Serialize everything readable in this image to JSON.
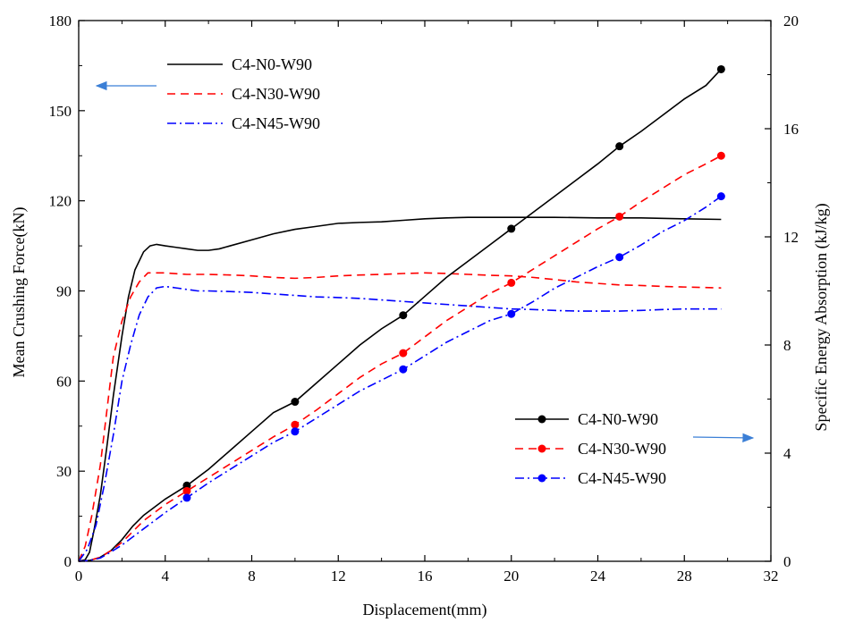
{
  "chart_data": {
    "type": "line",
    "x_axis": {
      "label": "Displacement(mm)",
      "range": [
        0,
        32
      ],
      "ticks": [
        0,
        4,
        8,
        12,
        16,
        20,
        24,
        28,
        32
      ]
    },
    "y_left": {
      "label": "Mean Crushing Force(kN)",
      "range": [
        0,
        180
      ],
      "ticks": [
        0,
        30,
        60,
        90,
        120,
        150,
        180
      ]
    },
    "y_right": {
      "label": "Specific Energy Absorption  (kJ/kg)",
      "range": [
        0,
        20
      ],
      "ticks": [
        0,
        4,
        8,
        12,
        16,
        20
      ]
    },
    "legend_left": {
      "placement": "top-left",
      "entries": [
        "C4-N0-W90",
        "C4-N30-W90",
        "C4-N45-W90"
      ]
    },
    "legend_right": {
      "placement": "bottom-right",
      "entries": [
        "C4-N0-W90",
        "C4-N30-W90",
        "C4-N45-W90"
      ]
    },
    "series": [
      {
        "name": "C4-N0-W90",
        "axis": "left",
        "color": "#000000",
        "style": "solid",
        "points": [
          [
            0,
            0
          ],
          [
            0.3,
            0.5
          ],
          [
            0.5,
            3
          ],
          [
            0.7,
            10
          ],
          [
            1,
            22
          ],
          [
            1.3,
            38
          ],
          [
            1.6,
            55
          ],
          [
            2,
            75
          ],
          [
            2.3,
            88
          ],
          [
            2.6,
            97
          ],
          [
            3,
            103
          ],
          [
            3.3,
            105
          ],
          [
            3.6,
            105.5
          ],
          [
            4,
            105
          ],
          [
            4.5,
            104.5
          ],
          [
            5,
            104
          ],
          [
            5.5,
            103.5
          ],
          [
            6,
            103.5
          ],
          [
            6.5,
            104
          ],
          [
            7,
            105
          ],
          [
            8,
            107
          ],
          [
            9,
            109
          ],
          [
            10,
            110.5
          ],
          [
            11,
            111.5
          ],
          [
            12,
            112.5
          ],
          [
            13,
            112.8
          ],
          [
            14,
            113
          ],
          [
            15,
            113.5
          ],
          [
            16,
            114
          ],
          [
            17,
            114.3
          ],
          [
            18,
            114.5
          ],
          [
            20,
            114.5
          ],
          [
            22,
            114.5
          ],
          [
            24,
            114.3
          ],
          [
            26,
            114.3
          ],
          [
            28,
            114
          ],
          [
            29.7,
            113.8
          ]
        ]
      },
      {
        "name": "C4-N30-W90",
        "axis": "left",
        "color": "#ff0000",
        "style": "dashed",
        "points": [
          [
            0,
            0
          ],
          [
            0.3,
            5
          ],
          [
            0.6,
            15
          ],
          [
            1,
            32
          ],
          [
            1.3,
            50
          ],
          [
            1.6,
            68
          ],
          [
            2,
            80
          ],
          [
            2.4,
            88
          ],
          [
            2.8,
            93
          ],
          [
            3.2,
            96
          ],
          [
            3.5,
            96
          ],
          [
            4,
            96
          ],
          [
            5,
            95.5
          ],
          [
            6,
            95.5
          ],
          [
            7,
            95.3
          ],
          [
            8,
            95
          ],
          [
            9,
            94.5
          ],
          [
            10,
            94.2
          ],
          [
            11,
            94.5
          ],
          [
            12,
            95
          ],
          [
            13,
            95.3
          ],
          [
            14,
            95.5
          ],
          [
            15,
            95.8
          ],
          [
            16,
            96
          ],
          [
            17,
            95.8
          ],
          [
            18,
            95.5
          ],
          [
            19,
            95.2
          ],
          [
            20,
            95
          ],
          [
            21,
            94.5
          ],
          [
            22,
            93.8
          ],
          [
            23,
            93
          ],
          [
            24,
            92.5
          ],
          [
            25,
            92
          ],
          [
            26,
            91.8
          ],
          [
            27,
            91.5
          ],
          [
            28,
            91.3
          ],
          [
            29.7,
            91
          ]
        ]
      },
      {
        "name": "C4-N45-W90",
        "axis": "left",
        "color": "#0000ff",
        "style": "dash-dot",
        "points": [
          [
            0,
            0
          ],
          [
            0.4,
            4
          ],
          [
            0.8,
            12
          ],
          [
            1.2,
            26
          ],
          [
            1.6,
            42
          ],
          [
            2,
            60
          ],
          [
            2.4,
            72
          ],
          [
            2.8,
            82
          ],
          [
            3.2,
            88
          ],
          [
            3.6,
            91
          ],
          [
            4,
            91.5
          ],
          [
            4.5,
            91
          ],
          [
            5,
            90.5
          ],
          [
            5.5,
            90
          ],
          [
            6,
            90
          ],
          [
            7,
            89.8
          ],
          [
            8,
            89.5
          ],
          [
            9,
            89
          ],
          [
            10,
            88.5
          ],
          [
            11,
            88
          ],
          [
            12,
            87.8
          ],
          [
            13,
            87.5
          ],
          [
            14,
            87
          ],
          [
            15,
            86.5
          ],
          [
            16,
            86
          ],
          [
            17,
            85.5
          ],
          [
            18,
            85
          ],
          [
            19,
            84.5
          ],
          [
            20,
            84
          ],
          [
            21,
            83.8
          ],
          [
            22,
            83.5
          ],
          [
            23,
            83.3
          ],
          [
            24,
            83.3
          ],
          [
            25,
            83.3
          ],
          [
            26,
            83.5
          ],
          [
            27,
            83.8
          ],
          [
            28,
            84
          ],
          [
            29.7,
            84
          ]
        ]
      },
      {
        "name": "C4-N0-W90",
        "axis": "right",
        "color": "#000000",
        "style": "solid",
        "markers": [
          5,
          10,
          15,
          20,
          25,
          29.7
        ],
        "points": [
          [
            0,
            0
          ],
          [
            0.5,
            0.03
          ],
          [
            1,
            0.15
          ],
          [
            1.5,
            0.4
          ],
          [
            2,
            0.8
          ],
          [
            2.5,
            1.3
          ],
          [
            3,
            1.7
          ],
          [
            4,
            2.3
          ],
          [
            5,
            2.8
          ],
          [
            6,
            3.4
          ],
          [
            7,
            4.1
          ],
          [
            8,
            4.8
          ],
          [
            9,
            5.5
          ],
          [
            10,
            5.9
          ],
          [
            11,
            6.6
          ],
          [
            12,
            7.3
          ],
          [
            13,
            8
          ],
          [
            14,
            8.6
          ],
          [
            15,
            9.1
          ],
          [
            16,
            9.8
          ],
          [
            17,
            10.5
          ],
          [
            18,
            11.1
          ],
          [
            19,
            11.7
          ],
          [
            20,
            12.3
          ],
          [
            21,
            12.9
          ],
          [
            22,
            13.5
          ],
          [
            23,
            14.1
          ],
          [
            24,
            14.7
          ],
          [
            25,
            15.35
          ],
          [
            26,
            15.9
          ],
          [
            27,
            16.5
          ],
          [
            28,
            17.1
          ],
          [
            29,
            17.6
          ],
          [
            29.7,
            18.2
          ]
        ]
      },
      {
        "name": "C4-N30-W90",
        "axis": "right",
        "color": "#ff0000",
        "style": "dashed",
        "markers": [
          5,
          10,
          15,
          20,
          25,
          29.7
        ],
        "points": [
          [
            0,
            0
          ],
          [
            0.5,
            0.03
          ],
          [
            1,
            0.15
          ],
          [
            1.5,
            0.4
          ],
          [
            2,
            0.7
          ],
          [
            2.5,
            1.1
          ],
          [
            3,
            1.5
          ],
          [
            4,
            2.1
          ],
          [
            5,
            2.6
          ],
          [
            6,
            3.1
          ],
          [
            7,
            3.6
          ],
          [
            8,
            4.1
          ],
          [
            9,
            4.6
          ],
          [
            10,
            5.05
          ],
          [
            11,
            5.6
          ],
          [
            12,
            6.2
          ],
          [
            13,
            6.8
          ],
          [
            14,
            7.3
          ],
          [
            15,
            7.7
          ],
          [
            16,
            8.3
          ],
          [
            17,
            8.9
          ],
          [
            18,
            9.4
          ],
          [
            19,
            9.9
          ],
          [
            20,
            10.3
          ],
          [
            21,
            10.8
          ],
          [
            22,
            11.3
          ],
          [
            23,
            11.8
          ],
          [
            24,
            12.3
          ],
          [
            25,
            12.75
          ],
          [
            26,
            13.3
          ],
          [
            27,
            13.8
          ],
          [
            28,
            14.3
          ],
          [
            29,
            14.7
          ],
          [
            29.7,
            15
          ]
        ]
      },
      {
        "name": "C4-N45-W90",
        "axis": "right",
        "color": "#0000ff",
        "style": "dash-dot",
        "markers": [
          5,
          10,
          15,
          20,
          25,
          29.7
        ],
        "points": [
          [
            0,
            0
          ],
          [
            0.5,
            0.03
          ],
          [
            1,
            0.12
          ],
          [
            1.5,
            0.35
          ],
          [
            2,
            0.6
          ],
          [
            2.5,
            0.9
          ],
          [
            3,
            1.2
          ],
          [
            4,
            1.8
          ],
          [
            5,
            2.35
          ],
          [
            6,
            2.9
          ],
          [
            7,
            3.4
          ],
          [
            8,
            3.9
          ],
          [
            9,
            4.4
          ],
          [
            10,
            4.8
          ],
          [
            11,
            5.3
          ],
          [
            12,
            5.8
          ],
          [
            13,
            6.3
          ],
          [
            14,
            6.7
          ],
          [
            15,
            7.1
          ],
          [
            16,
            7.6
          ],
          [
            17,
            8.1
          ],
          [
            18,
            8.5
          ],
          [
            19,
            8.9
          ],
          [
            20,
            9.15
          ],
          [
            21,
            9.6
          ],
          [
            22,
            10.1
          ],
          [
            23,
            10.5
          ],
          [
            24,
            10.9
          ],
          [
            25,
            11.25
          ],
          [
            26,
            11.7
          ],
          [
            27,
            12.2
          ],
          [
            28,
            12.6
          ],
          [
            29,
            13.1
          ],
          [
            29.7,
            13.5
          ]
        ]
      }
    ]
  }
}
